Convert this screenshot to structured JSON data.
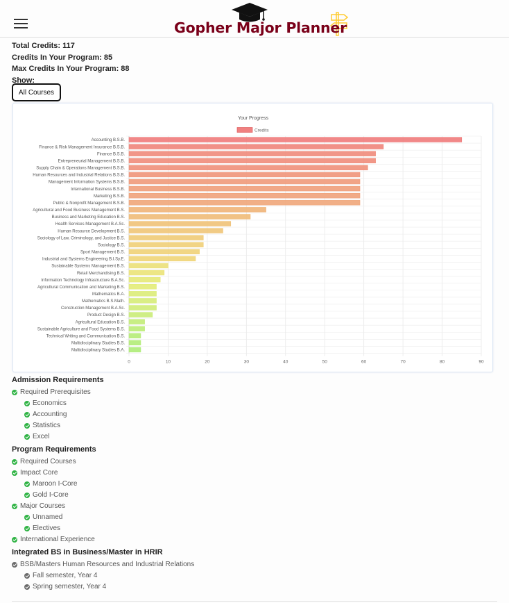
{
  "header": {
    "title": "Gopher Major Planner",
    "menu_icon": "hamburger-icon",
    "logo_icons": [
      "graduation-cap-icon",
      "signpost-icon"
    ],
    "colors": {
      "brand": "#7a0019",
      "accent": "#ffcc33"
    }
  },
  "stats": {
    "total_credits": "Total Credits: 117",
    "program_credits": "Credits In Your Program: 85",
    "max_credits": "Max Credits In Your Program: 88",
    "show_label": "Show:"
  },
  "show_button": {
    "label": "All Courses"
  },
  "chart_data": {
    "type": "bar",
    "orientation": "horizontal",
    "title": "Your Progress",
    "legend_placement": "top",
    "grid": true,
    "xlim": [
      0,
      90
    ],
    "x_ticks": [
      "0",
      "10",
      "20",
      "30",
      "40",
      "50",
      "60",
      "70",
      "80",
      "90"
    ],
    "series": [
      {
        "name": "Credits",
        "legend_color": "#f08080",
        "categories": [
          "Accounting B.S.B.",
          "Finance & Risk Management Insurance B.S.B.",
          "Finance B.S.B.",
          "Entrepreneurial Management B.S.B.",
          "Supply Chain & Operations Management B.S.B.",
          "Human Resources and Industrial Relations B.S.B.",
          "Management Information Systems B.S.B.",
          "International Business B.S.B.",
          "Marketing B.S.B.",
          "Public & Nonprofit Management B.S.B.",
          "Agricultural and Food Business Management B.S.",
          "Business and Marketing Education B.S.",
          "Health Services Management B.A.Sc.",
          "Human Resource Development B.S.",
          "Sociology of Law, Criminology, and Justice B.S.",
          "Sociology B.S.",
          "Sport Management B.S.",
          "Industrial and Systems Engineering B.I.Sy.E.",
          "Sustainable Systems Management B.S.",
          "Retail Merchandising B.S.",
          "Information Technology Infrastructure B.A.Sc.",
          "Agricultural Communication and Marketing B.S.",
          "Mathematics B.A.",
          "Mathematics B.S.Math.",
          "Construction Management B.A.Sc.",
          "Product Design B.S.",
          "Agricultural Education B.S.",
          "Sustainable Agriculture and Food Systems B.S.",
          "Technical Writing and Communication B.S.",
          "Multidisciplinary Studies B.S.",
          "Multidisciplinary Studies B.A."
        ],
        "values": [
          85,
          65,
          63,
          63,
          61,
          59,
          59,
          59,
          59,
          59,
          35,
          31,
          26,
          24,
          19,
          19,
          18,
          17,
          10,
          9,
          8,
          7,
          7,
          7,
          7,
          6,
          4,
          4,
          3,
          3,
          3
        ],
        "colors": [
          "#f07b7b",
          "#f0857b",
          "#f08b7b",
          "#f08d7b",
          "#f0907a",
          "#f0957a",
          "#f09a7a",
          "#f09e7a",
          "#f0a27a",
          "#f0a67a",
          "#f0b478",
          "#f0bb78",
          "#f0c278",
          "#f0c578",
          "#f0cb78",
          "#f0cf78",
          "#f0d278",
          "#f0d578",
          "#ebe078",
          "#ebe378",
          "#e6e978",
          "#e3ec78",
          "#dcec78",
          "#d6ec78",
          "#d0ec78",
          "#caec78",
          "#c2ec78",
          "#bcec78",
          "#b6ec78",
          "#b2ec78",
          "#aeec78"
        ]
      }
    ]
  },
  "requirements": [
    {
      "title": "Admission Requirements",
      "items": [
        {
          "label": "Required Prerequisites",
          "status": "complete",
          "children": [
            {
              "label": "Economics",
              "status": "complete"
            },
            {
              "label": "Accounting",
              "status": "complete"
            },
            {
              "label": "Statistics",
              "status": "complete"
            },
            {
              "label": "Excel",
              "status": "complete"
            }
          ]
        }
      ]
    },
    {
      "title": "Program Requirements",
      "items": [
        {
          "label": "Required Courses",
          "status": "complete",
          "children": []
        },
        {
          "label": "Impact Core",
          "status": "complete",
          "children": [
            {
              "label": "Maroon I-Core",
              "status": "complete"
            },
            {
              "label": "Gold I-Core",
              "status": "complete"
            }
          ]
        },
        {
          "label": "Major Courses",
          "status": "complete",
          "children": [
            {
              "label": "Unnamed",
              "status": "complete"
            },
            {
              "label": "Electives",
              "status": "complete"
            }
          ]
        },
        {
          "label": "International Experience",
          "status": "complete",
          "children": []
        }
      ]
    },
    {
      "title": "Integrated BS in Business/Master in HRIR",
      "items": [
        {
          "label": "BSB/Masters Human Resources and Industrial Relations",
          "status": "incomplete",
          "children": [
            {
              "label": "Fall semester, Year 4",
              "status": "incomplete"
            },
            {
              "label": "Spring semester, Year 4",
              "status": "incomplete"
            }
          ]
        }
      ]
    }
  ]
}
